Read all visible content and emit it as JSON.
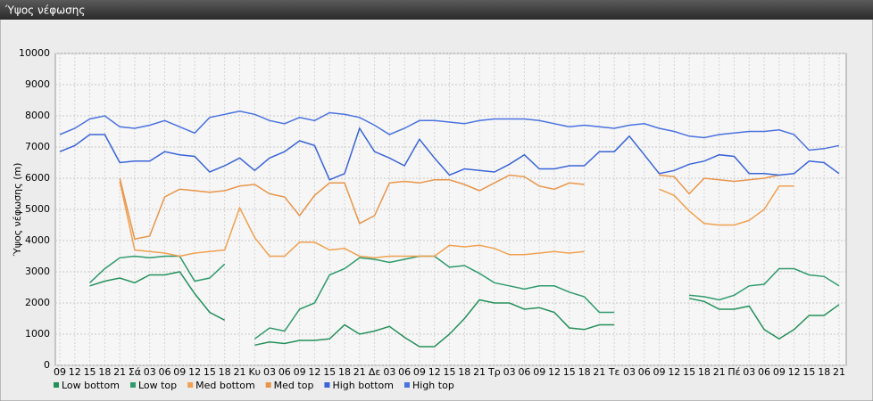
{
  "chart_data": {
    "type": "line",
    "title": "Ύψος νέφωσης",
    "y_label": "Ύψος νέφωσης (m)",
    "categories": [
      "09",
      "12",
      "15",
      "18",
      "21",
      "Σά",
      "03",
      "06",
      "09",
      "12",
      "15",
      "18",
      "21",
      "Κυ",
      "03",
      "06",
      "09",
      "12",
      "15",
      "18",
      "21",
      "Δε",
      "03",
      "06",
      "09",
      "12",
      "15",
      "18",
      "21",
      "Τρ",
      "03",
      "06",
      "09",
      "12",
      "15",
      "18",
      "21",
      "Τε",
      "03",
      "06",
      "09",
      "12",
      "15",
      "18",
      "21",
      "Πέ",
      "03",
      "06",
      "09",
      "12",
      "15",
      "18",
      "21"
    ],
    "ylim": [
      0,
      10000
    ],
    "yticks": [
      0,
      1000,
      2000,
      3000,
      4000,
      5000,
      6000,
      7000,
      8000,
      9000,
      10000
    ],
    "grid": true,
    "series": [
      {
        "name": "Low bottom",
        "color": "#24905a",
        "values": [
          null,
          null,
          2550,
          2700,
          2800,
          2650,
          2900,
          2900,
          3000,
          2300,
          1700,
          1450,
          null,
          650,
          750,
          700,
          800,
          800,
          850,
          1300,
          1000,
          1100,
          1250,
          900,
          600,
          600,
          1000,
          1500,
          2100,
          2000,
          2000,
          1800,
          1850,
          1700,
          1200,
          1150,
          1300,
          1300,
          null,
          null,
          null,
          null,
          2150,
          2050,
          1800,
          1800,
          1900,
          1150,
          850,
          1150,
          1600,
          1600,
          1950
        ]
      },
      {
        "name": "Low top",
        "color": "#2e9a6c",
        "values": [
          null,
          null,
          2650,
          3100,
          3450,
          3500,
          3450,
          3500,
          3500,
          2700,
          2800,
          3250,
          null,
          850,
          1200,
          1100,
          1800,
          2000,
          2900,
          3100,
          3450,
          3400,
          3300,
          3400,
          3500,
          3500,
          3150,
          3200,
          2950,
          2650,
          2550,
          2450,
          2550,
          2550,
          2350,
          2200,
          1700,
          1700,
          null,
          null,
          null,
          null,
          2250,
          2200,
          2100,
          2250,
          2550,
          2600,
          3100,
          3100,
          2900,
          2850,
          2550
        ]
      },
      {
        "name": "Med bottom",
        "color": "#f0a050",
        "values": [
          null,
          null,
          null,
          null,
          5900,
          3700,
          3650,
          3600,
          3500,
          3600,
          3650,
          3700,
          5050,
          4100,
          3500,
          3500,
          3950,
          3950,
          3700,
          3750,
          3500,
          3450,
          3500,
          3500,
          3500,
          3500,
          3850,
          3800,
          3850,
          3750,
          3550,
          3550,
          3600,
          3650,
          3600,
          3650,
          null,
          null,
          null,
          null,
          5650,
          5450,
          4950,
          4550,
          4500,
          4500,
          4650,
          5000,
          5750,
          5750,
          null,
          null,
          null
        ]
      },
      {
        "name": "Med top",
        "color": "#e8954a",
        "values": [
          null,
          null,
          null,
          null,
          6000,
          4050,
          4150,
          5400,
          5650,
          5600,
          5550,
          5600,
          5750,
          5800,
          5500,
          5400,
          4800,
          5450,
          5850,
          5850,
          4550,
          4800,
          5850,
          5900,
          5850,
          5950,
          5950,
          5800,
          5600,
          5850,
          6100,
          6050,
          5750,
          5650,
          5850,
          5800,
          null,
          null,
          null,
          null,
          6100,
          6050,
          5500,
          6000,
          5950,
          5900,
          5950,
          6000,
          6100,
          null,
          null,
          null,
          null
        ]
      },
      {
        "name": "High bottom",
        "color": "#3a64d8",
        "values": [
          6850,
          7050,
          7400,
          7400,
          6500,
          6550,
          6550,
          6850,
          6750,
          6700,
          6200,
          6400,
          6650,
          6250,
          6650,
          6850,
          7200,
          7050,
          5950,
          6150,
          7600,
          6850,
          6650,
          6400,
          7250,
          6650,
          6100,
          6300,
          6250,
          6200,
          6450,
          6750,
          6300,
          6300,
          6400,
          6400,
          6850,
          6850,
          7350,
          6750,
          6150,
          6250,
          6450,
          6550,
          6750,
          6700,
          6150,
          6150,
          6100,
          6150,
          6550,
          6500,
          6150
        ]
      },
      {
        "name": "High top",
        "color": "#4a72e0",
        "values": [
          7400,
          7600,
          7900,
          8000,
          7650,
          7600,
          7700,
          7850,
          7650,
          7450,
          7950,
          8050,
          8150,
          8050,
          7850,
          7750,
          7950,
          7850,
          8100,
          8050,
          7950,
          7700,
          7400,
          7600,
          7850,
          7850,
          7800,
          7750,
          7850,
          7900,
          7900,
          7900,
          7850,
          7750,
          7650,
          7700,
          7650,
          7600,
          7700,
          7750,
          7600,
          7500,
          7350,
          7300,
          7400,
          7450,
          7500,
          7500,
          7550,
          7400,
          6900,
          6950,
          7050
        ]
      }
    ]
  }
}
